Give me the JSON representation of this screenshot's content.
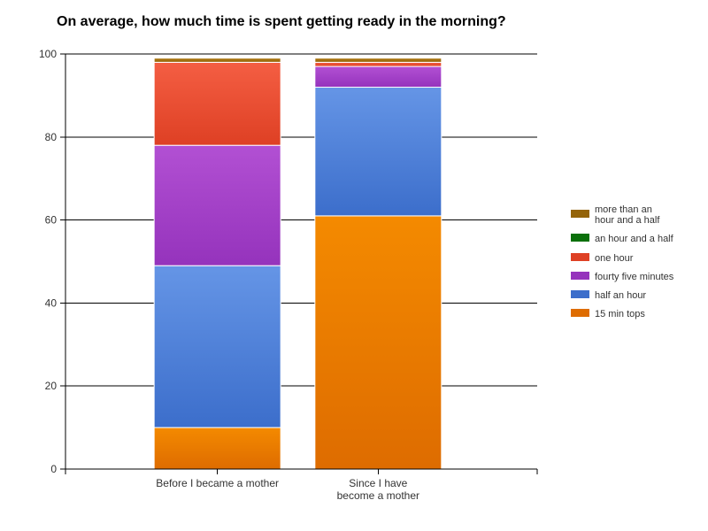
{
  "chart_data": {
    "type": "bar",
    "stacked": true,
    "title": "On average, how much time is spent getting ready in the morning?",
    "xlabel": "",
    "ylabel": "",
    "ylim": [
      0,
      100
    ],
    "yticks": [
      0,
      20,
      40,
      60,
      80,
      100
    ],
    "grid": true,
    "legend_position": "right",
    "categories": [
      {
        "lines": [
          "Before I became a mother"
        ]
      },
      {
        "lines": [
          "Since I have",
          "become a mother"
        ]
      }
    ],
    "series": [
      {
        "name": "15 min tops",
        "color": "#f48a00",
        "color_dark": "#de6c00",
        "values": [
          10,
          61
        ]
      },
      {
        "name": "half an hour",
        "color": "#6595e6",
        "color_dark": "#3c6ecb",
        "values": [
          39,
          31
        ]
      },
      {
        "name": "fourty five minutes",
        "color": "#b250d3",
        "color_dark": "#9533bc",
        "values": [
          29,
          5
        ]
      },
      {
        "name": "one hour",
        "color": "#f45e43",
        "color_dark": "#de4024",
        "values": [
          20,
          1
        ]
      },
      {
        "name": "an hour and a half",
        "color": "#138a13",
        "color_dark": "#0b700b",
        "values": [
          0,
          0
        ]
      },
      {
        "name": "more than an hour and a half",
        "legend_lines": [
          "more than an",
          "hour and a half"
        ],
        "color": "#b07a12",
        "color_dark": "#94640a",
        "values": [
          1,
          1
        ]
      }
    ]
  }
}
